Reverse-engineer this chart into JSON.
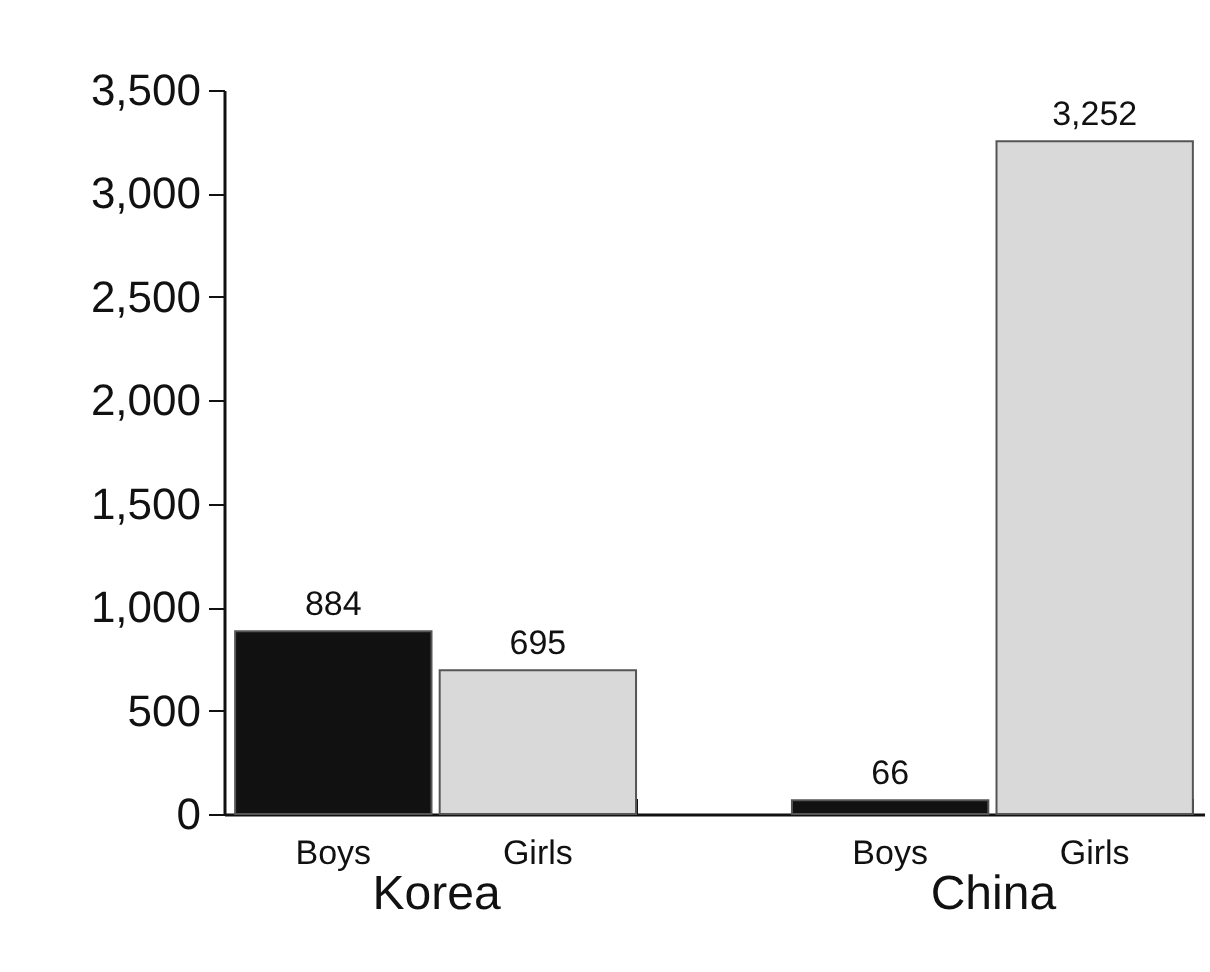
{
  "chart_data": {
    "type": "bar",
    "categories": [
      "Korea",
      "China"
    ],
    "series": [
      {
        "name": "Boys",
        "color": "#111111",
        "values": [
          884,
          66
        ],
        "value_labels": [
          "884",
          "66"
        ]
      },
      {
        "name": "Girls",
        "color": "#d9d9d9",
        "values": [
          695,
          3252
        ],
        "value_labels": [
          "695",
          "3,252"
        ]
      }
    ],
    "ylim": [
      0,
      3500
    ],
    "yticks": [
      {
        "value": 0,
        "label": "0"
      },
      {
        "value": 500,
        "label": "500"
      },
      {
        "value": 1000,
        "label": "1,000"
      },
      {
        "value": 1500,
        "label": "1,500"
      },
      {
        "value": 2000,
        "label": "2,000"
      },
      {
        "value": 2500,
        "label": "2,500"
      },
      {
        "value": 3000,
        "label": "3,000"
      },
      {
        "value": 3500,
        "label": "3,500"
      }
    ]
  }
}
